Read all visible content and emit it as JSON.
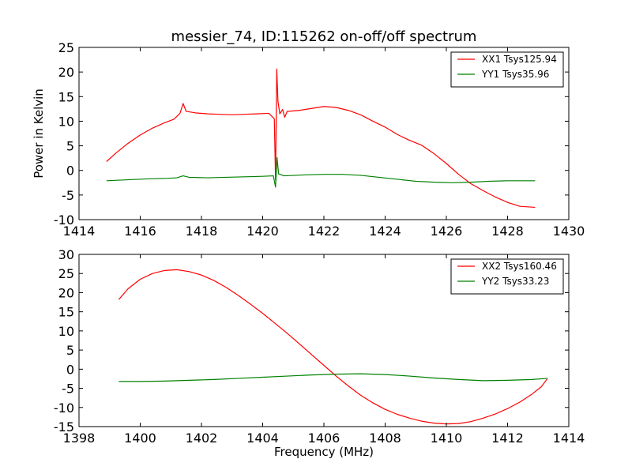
{
  "chart_data": [
    {
      "type": "line",
      "title": "messier_74, ID:115262 on-off/off spectrum",
      "xlabel": "",
      "ylabel": "Power in Kelvin",
      "xlim": [
        1414,
        1430
      ],
      "ylim": [
        -10,
        25
      ],
      "xticks": [
        1414,
        1416,
        1418,
        1420,
        1422,
        1424,
        1426,
        1428,
        1430
      ],
      "yticks": [
        -10,
        -5,
        0,
        5,
        10,
        15,
        20,
        25
      ],
      "legend_position": "top-right",
      "series": [
        {
          "name": "XX1 Tsys125.94",
          "color": "#ff0000",
          "points": [
            [
              1414.9,
              1.8
            ],
            [
              1415.2,
              3.5
            ],
            [
              1415.6,
              5.5
            ],
            [
              1416.0,
              7.2
            ],
            [
              1416.4,
              8.6
            ],
            [
              1416.8,
              9.7
            ],
            [
              1417.1,
              10.4
            ],
            [
              1417.3,
              11.6
            ],
            [
              1417.4,
              13.6
            ],
            [
              1417.5,
              12.0
            ],
            [
              1417.8,
              11.7
            ],
            [
              1418.2,
              11.5
            ],
            [
              1418.6,
              11.4
            ],
            [
              1419.0,
              11.3
            ],
            [
              1419.4,
              11.4
            ],
            [
              1419.8,
              11.5
            ],
            [
              1420.2,
              11.6
            ],
            [
              1420.38,
              10.5
            ],
            [
              1420.42,
              -2.0
            ],
            [
              1420.46,
              20.6
            ],
            [
              1420.5,
              14.0
            ],
            [
              1420.56,
              11.5
            ],
            [
              1420.65,
              12.4
            ],
            [
              1420.72,
              10.8
            ],
            [
              1420.8,
              12.0
            ],
            [
              1421.2,
              12.2
            ],
            [
              1421.6,
              12.6
            ],
            [
              1422.0,
              13.0
            ],
            [
              1422.4,
              12.8
            ],
            [
              1422.8,
              12.2
            ],
            [
              1423.2,
              11.3
            ],
            [
              1423.6,
              10.0
            ],
            [
              1424.0,
              8.8
            ],
            [
              1424.4,
              7.3
            ],
            [
              1424.8,
              6.1
            ],
            [
              1425.2,
              5.1
            ],
            [
              1425.6,
              3.4
            ],
            [
              1426.0,
              1.4
            ],
            [
              1426.4,
              -0.8
            ],
            [
              1426.8,
              -2.7
            ],
            [
              1427.2,
              -4.1
            ],
            [
              1427.6,
              -5.4
            ],
            [
              1428.0,
              -6.5
            ],
            [
              1428.4,
              -7.3
            ],
            [
              1428.9,
              -7.5
            ]
          ]
        },
        {
          "name": "YY1 Tsys35.96",
          "color": "#008000",
          "points": [
            [
              1414.9,
              -2.1
            ],
            [
              1415.6,
              -1.9
            ],
            [
              1416.3,
              -1.7
            ],
            [
              1416.9,
              -1.6
            ],
            [
              1417.2,
              -1.5
            ],
            [
              1417.4,
              -1.1
            ],
            [
              1417.6,
              -1.4
            ],
            [
              1418.2,
              -1.5
            ],
            [
              1418.8,
              -1.4
            ],
            [
              1419.4,
              -1.3
            ],
            [
              1420.0,
              -1.2
            ],
            [
              1420.35,
              -1.1
            ],
            [
              1420.42,
              -3.4
            ],
            [
              1420.47,
              2.6
            ],
            [
              1420.52,
              -0.7
            ],
            [
              1420.7,
              -1.1
            ],
            [
              1421.4,
              -0.9
            ],
            [
              1422.0,
              -0.8
            ],
            [
              1422.6,
              -0.8
            ],
            [
              1423.2,
              -1.0
            ],
            [
              1423.8,
              -1.4
            ],
            [
              1424.4,
              -1.8
            ],
            [
              1425.0,
              -2.2
            ],
            [
              1425.6,
              -2.4
            ],
            [
              1426.2,
              -2.5
            ],
            [
              1426.8,
              -2.4
            ],
            [
              1427.4,
              -2.2
            ],
            [
              1428.0,
              -2.1
            ],
            [
              1428.9,
              -2.1
            ]
          ]
        }
      ]
    },
    {
      "type": "line",
      "title": "",
      "xlabel": "Frequency (MHz)",
      "ylabel": "",
      "xlim": [
        1398,
        1414
      ],
      "ylim": [
        -15,
        30
      ],
      "xticks": [
        1398,
        1400,
        1402,
        1404,
        1406,
        1408,
        1410,
        1412,
        1414
      ],
      "yticks": [
        -15,
        -10,
        -5,
        0,
        5,
        10,
        15,
        20,
        25,
        30
      ],
      "legend_position": "top-right",
      "series": [
        {
          "name": "XX2 Tsys160.46",
          "color": "#ff0000",
          "points": [
            [
              1399.3,
              18.2
            ],
            [
              1399.6,
              21.0
            ],
            [
              1400.0,
              23.5
            ],
            [
              1400.4,
              25.0
            ],
            [
              1400.8,
              25.8
            ],
            [
              1401.2,
              26.0
            ],
            [
              1401.6,
              25.5
            ],
            [
              1402.0,
              24.6
            ],
            [
              1402.4,
              23.2
            ],
            [
              1402.8,
              21.4
            ],
            [
              1403.2,
              19.3
            ],
            [
              1403.6,
              17.0
            ],
            [
              1404.0,
              14.6
            ],
            [
              1404.4,
              12.0
            ],
            [
              1404.8,
              9.4
            ],
            [
              1405.2,
              6.6
            ],
            [
              1405.6,
              3.8
            ],
            [
              1406.0,
              1.0
            ],
            [
              1406.4,
              -1.8
            ],
            [
              1406.8,
              -4.4
            ],
            [
              1407.2,
              -6.8
            ],
            [
              1407.6,
              -8.8
            ],
            [
              1408.0,
              -10.5
            ],
            [
              1408.4,
              -11.8
            ],
            [
              1408.8,
              -12.8
            ],
            [
              1409.2,
              -13.6
            ],
            [
              1409.6,
              -14.1
            ],
            [
              1410.0,
              -14.3
            ],
            [
              1410.4,
              -14.2
            ],
            [
              1410.8,
              -13.7
            ],
            [
              1411.2,
              -12.8
            ],
            [
              1411.6,
              -11.7
            ],
            [
              1412.0,
              -10.3
            ],
            [
              1412.4,
              -8.6
            ],
            [
              1412.8,
              -6.5
            ],
            [
              1413.1,
              -4.6
            ],
            [
              1413.3,
              -2.5
            ]
          ]
        },
        {
          "name": "YY2 Tsys33.23",
          "color": "#008000",
          "points": [
            [
              1399.3,
              -3.2
            ],
            [
              1400.0,
              -3.2
            ],
            [
              1400.8,
              -3.1
            ],
            [
              1401.6,
              -2.9
            ],
            [
              1402.4,
              -2.7
            ],
            [
              1403.2,
              -2.4
            ],
            [
              1404.0,
              -2.1
            ],
            [
              1404.8,
              -1.8
            ],
            [
              1405.6,
              -1.5
            ],
            [
              1406.4,
              -1.3
            ],
            [
              1407.2,
              -1.2
            ],
            [
              1408.0,
              -1.4
            ],
            [
              1408.8,
              -1.8
            ],
            [
              1409.6,
              -2.3
            ],
            [
              1410.4,
              -2.7
            ],
            [
              1411.2,
              -3.0
            ],
            [
              1412.0,
              -2.9
            ],
            [
              1412.8,
              -2.7
            ],
            [
              1413.3,
              -2.4
            ]
          ]
        }
      ]
    }
  ]
}
